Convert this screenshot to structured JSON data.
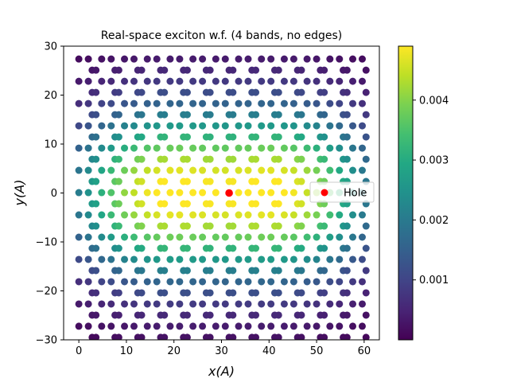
{
  "chart_data": {
    "type": "scatter",
    "title": "Real-space exciton w.f. (4 bands, no edges)",
    "xlabel": "x(A)",
    "ylabel": "y(A)",
    "xlim": [
      -3.2,
      63.2
    ],
    "ylim": [
      -30,
      30
    ],
    "xticks": [
      0,
      10,
      20,
      30,
      40,
      50,
      60
    ],
    "yticks": [
      -30,
      -20,
      -10,
      0,
      10,
      20,
      30
    ],
    "xtick_labels": [
      "0",
      "10",
      "20",
      "30",
      "40",
      "50",
      "60"
    ],
    "ytick_labels": [
      "−30",
      "−20",
      "−10",
      "0",
      "10",
      "20",
      "30"
    ],
    "lattice": {
      "a_x": 4.8,
      "row_spacing_y": 4.55,
      "column_pattern": "sublattice columns at x0, x0+1.6, x0+2.4 with alternating row offsets",
      "x_range": [
        0,
        60.5
      ],
      "y_range": [
        -29.5,
        29.5
      ]
    },
    "series": [
      {
        "kind": "colored-points",
        "value_quantity": "|psi|^2",
        "max_value": 0.0049,
        "envelope_centers": [
          [
            16,
            0
          ],
          [
            44,
            0
          ]
        ],
        "envelope_sigma_x": 18,
        "envelope_sigma_y": 17
      },
      {
        "name": "Hole",
        "kind": "marker",
        "x": 31.6,
        "y": 0,
        "color": "#ff0000"
      }
    ],
    "colorbar": {
      "colormap": "viridis",
      "min": 0,
      "max": 0.0049,
      "ticks": [
        0.001,
        0.002,
        0.003,
        0.004
      ],
      "tick_labels": [
        "0.001",
        "0.002",
        "0.003",
        "0.004"
      ]
    },
    "legend": {
      "placement": "center-right",
      "entries": [
        {
          "label": "Hole",
          "color": "#ff0000"
        }
      ]
    },
    "grid": false
  }
}
